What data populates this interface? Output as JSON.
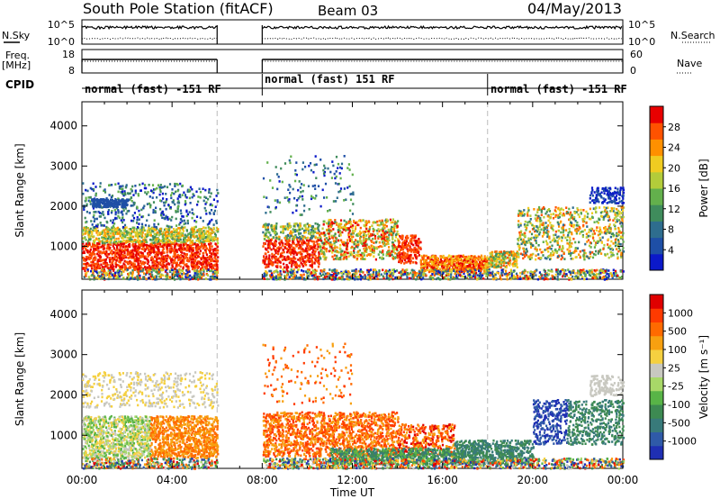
{
  "header": {
    "station": "South Pole Station (fitACF)",
    "beam": "Beam 03",
    "date": "04/May/2013"
  },
  "top_panels": {
    "nsky_label": "N.Sky",
    "nsearch_label": "N.Search",
    "nave_label": "Nave",
    "freq_label_1": "Freq.",
    "freq_label_2": "[MHz]",
    "cpid_label": "CPID",
    "noise_ticks": [
      "10^5",
      "10^0"
    ],
    "freq_ticks": [
      "18",
      "8"
    ],
    "nave_ticks": [
      "60",
      "0"
    ],
    "cpid_segments": [
      {
        "text": "normal (fast) -151 RF",
        "start_hr": 0
      },
      {
        "text": "normal (fast) 151 RF",
        "start_hr": 8
      },
      {
        "text": "normal (fast) -151 RF",
        "start_hr": 18
      }
    ]
  },
  "chart_data": [
    {
      "type": "heatmap",
      "title": "",
      "xlabel": "",
      "ylabel": "Slant Range [km]",
      "xlim_hours": [
        0,
        24
      ],
      "ylim": [
        180,
        4600
      ],
      "yticks": [
        1000,
        2000,
        3000,
        4000
      ],
      "data_gap_hours": [
        6,
        8
      ],
      "colorbar": {
        "label": "Power [dB]",
        "ticks": [
          "28",
          "24",
          "20",
          "16",
          "12",
          "8",
          "4"
        ],
        "range": [
          0,
          30
        ],
        "colors": [
          "#0b19c9",
          "#1e4fa6",
          "#2e6d8e",
          "#3f8c5c",
          "#63b04c",
          "#b3cc3a",
          "#f0cc21",
          "#ff9000",
          "#ff5200",
          "#e80000"
        ]
      }
    },
    {
      "type": "heatmap",
      "title": "",
      "xlabel": "Time UT",
      "ylabel": "Slant Range [km]",
      "xlim_hours": [
        0,
        24
      ],
      "ylim": [
        180,
        4600
      ],
      "yticks": [
        1000,
        2000,
        3000,
        4000
      ],
      "xticks": [
        "00:00",
        "04:00",
        "08:00",
        "12:00",
        "16:00",
        "20:00",
        "00:00"
      ],
      "data_gap_hours": [
        6,
        8
      ],
      "colorbar": {
        "label": "Velocity [m s⁻¹]",
        "ticks": [
          "1000",
          "500",
          "100",
          "25",
          "-25",
          "-100",
          "-500",
          "-1000"
        ],
        "colors": [
          "#1f2fb3",
          "#2f5aa8",
          "#387a7a",
          "#3d8a52",
          "#58b447",
          "#a8d868",
          "#c8c8c0",
          "#f5d040",
          "#f7a010",
          "#ff6a00",
          "#ff3a00",
          "#e00000"
        ]
      }
    }
  ]
}
